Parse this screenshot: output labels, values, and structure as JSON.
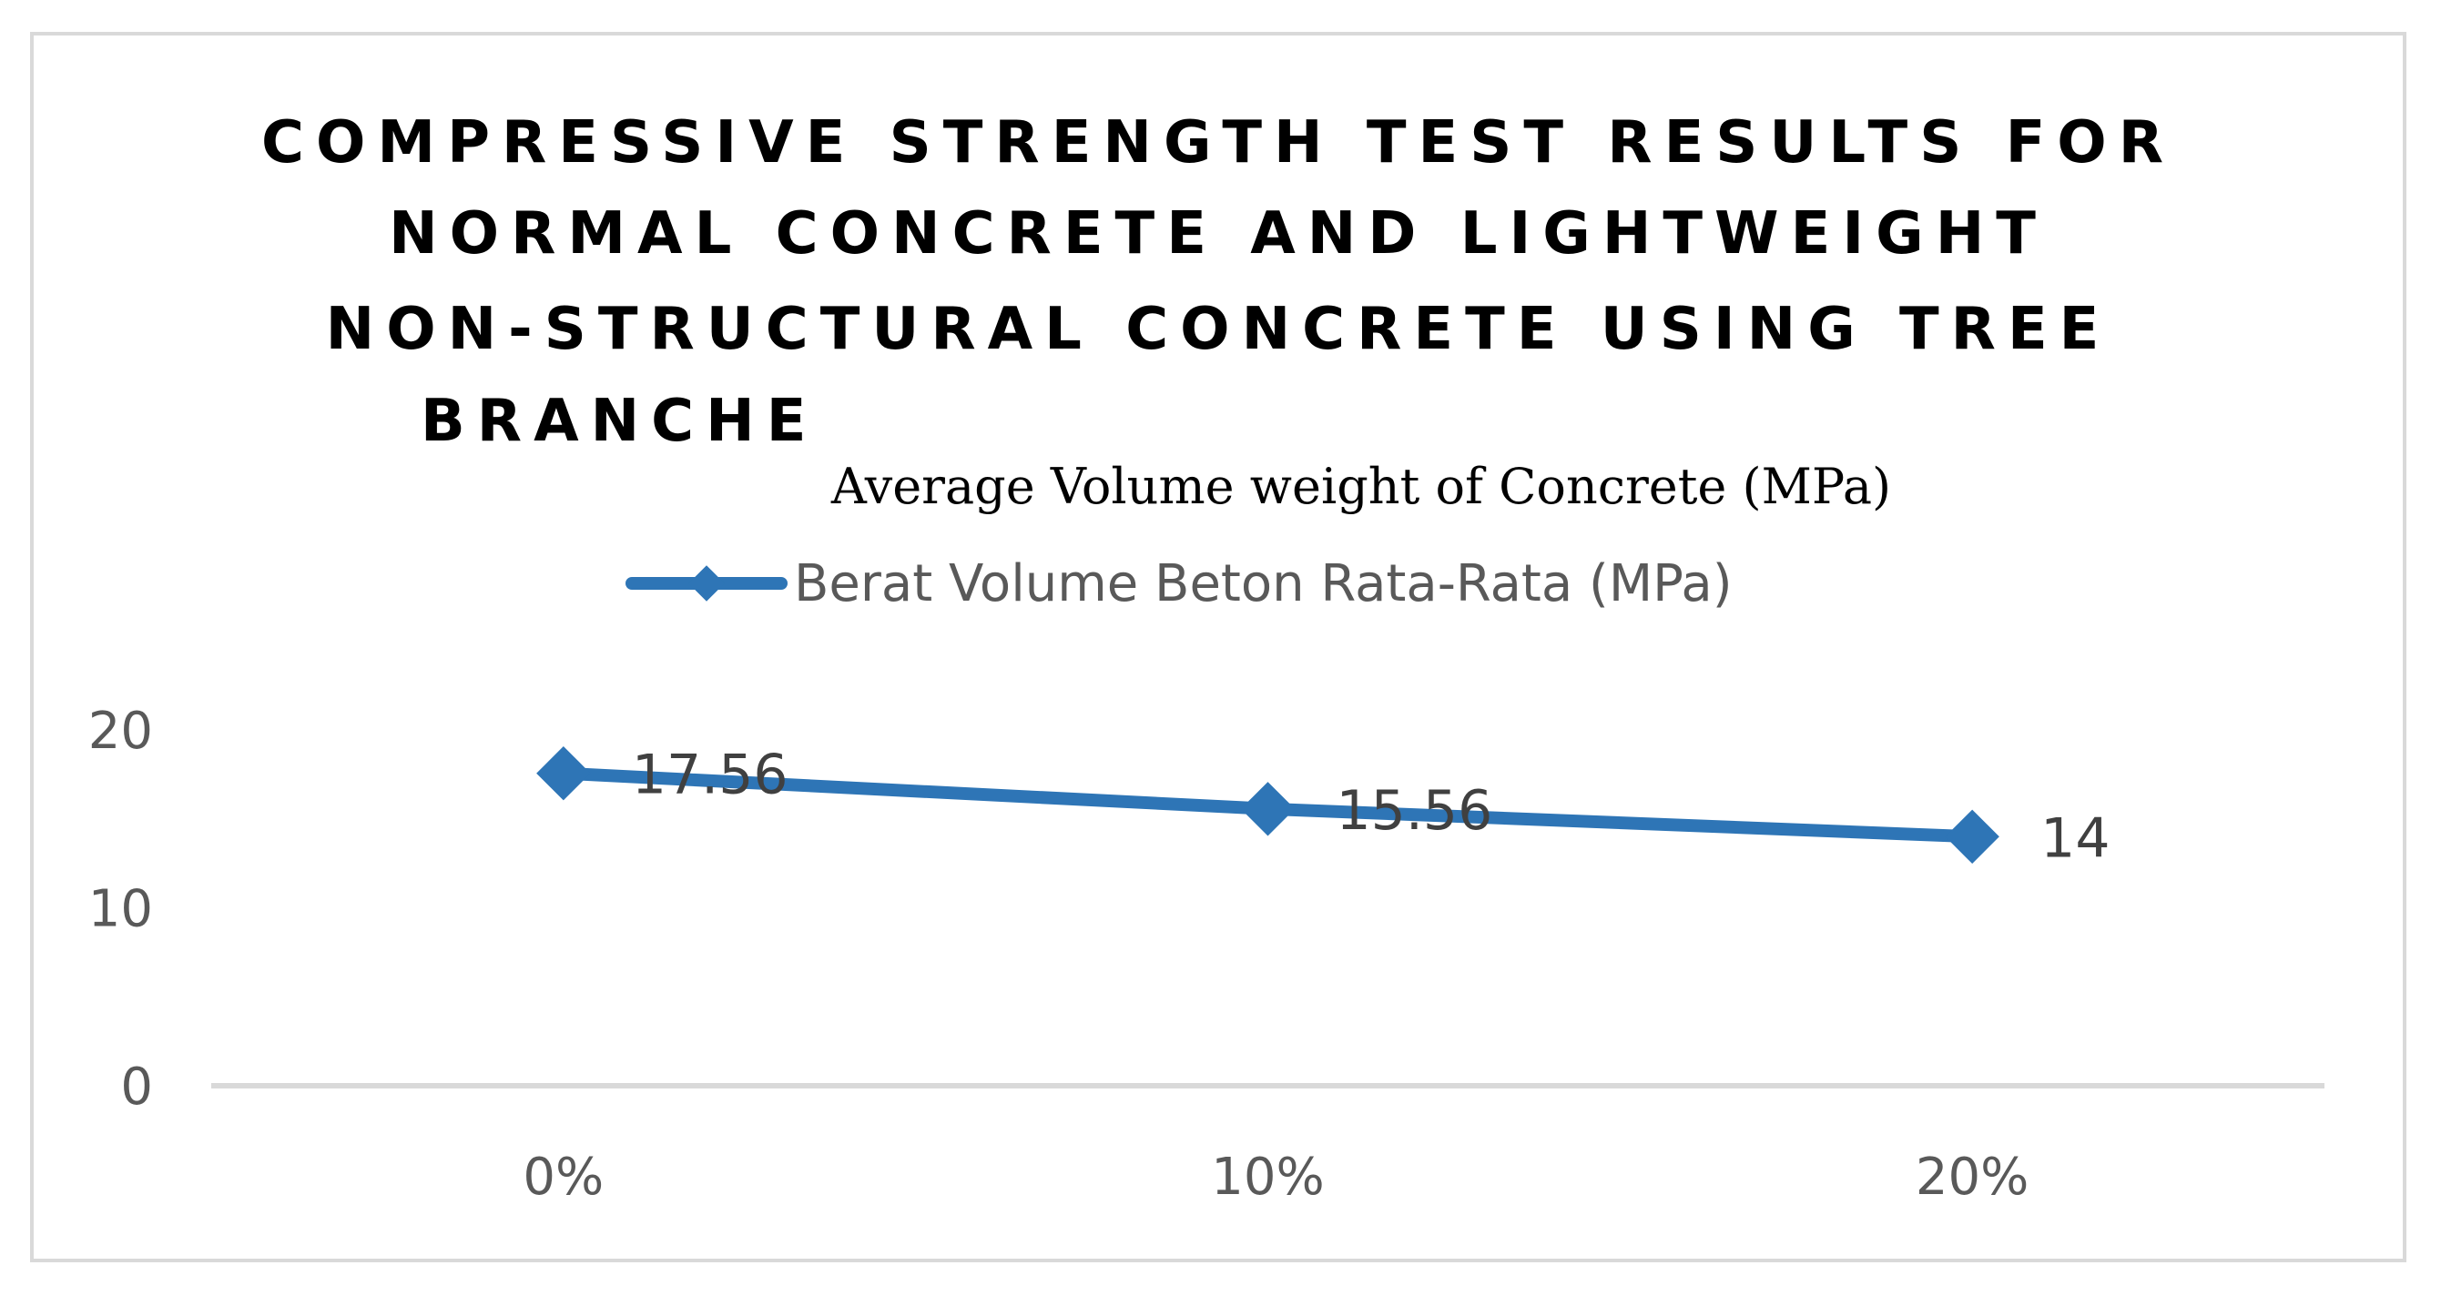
{
  "chart_data": {
    "type": "line",
    "title_lines": [
      "COMPRESSIVE STRENGTH TEST RESULTS FOR",
      "NORMAL CONCRETE AND LIGHTWEIGHT",
      "NON-STRUCTURAL CONCRETE USING TREE",
      "BRANCHE"
    ],
    "subtitle": "Average Volume weight of Concrete (MPa)",
    "categories": [
      "0%",
      "10%",
      "20%"
    ],
    "series": [
      {
        "name": "Berat Volume Beton Rata-Rata (MPa)",
        "values": [
          17.56,
          15.56,
          14
        ],
        "value_labels": [
          "17.56",
          "15.56",
          "14"
        ],
        "color": "#2E75B6"
      }
    ],
    "y_ticks": [
      0,
      10,
      20
    ],
    "y_tick_labels": [
      "0",
      "10",
      "20"
    ],
    "ylim": [
      0,
      20
    ],
    "xlabel": "",
    "ylabel": "",
    "legend_position": "top",
    "grid": false,
    "axis_color": "#d9d9d9",
    "border_color": "#d9d9d9"
  }
}
